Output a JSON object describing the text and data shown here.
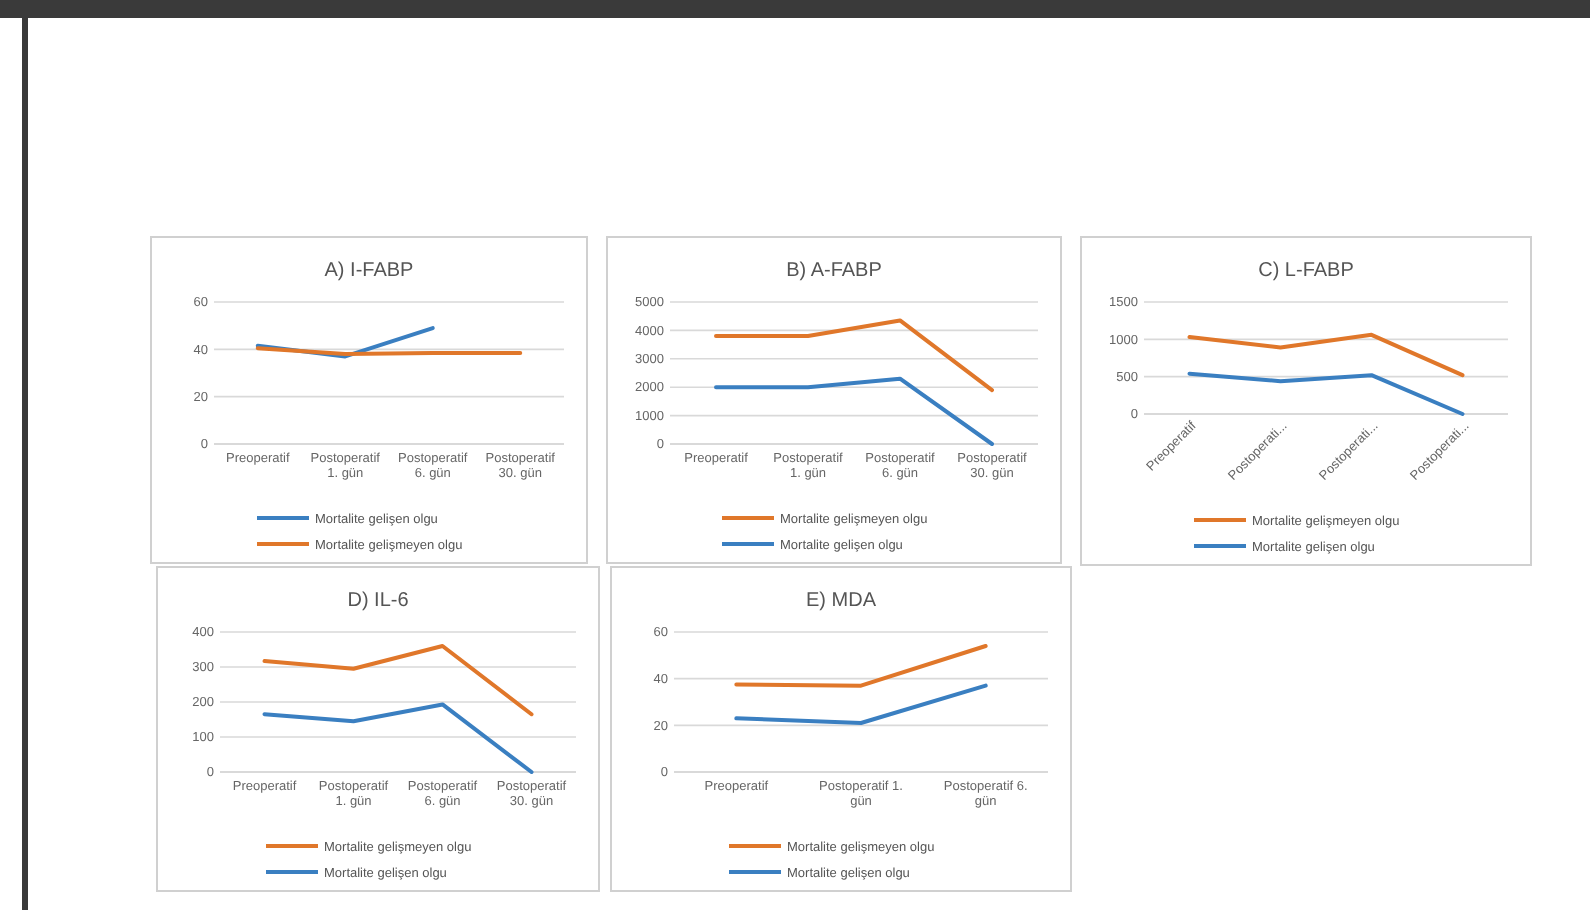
{
  "chart_data": [
    {
      "type": "line",
      "title": "A) I-FABP",
      "categories": [
        "Preoperatif",
        "Postoperatif 1. gün",
        "Postoperatif 6. gün",
        "Postoperatif 30. gün"
      ],
      "series": [
        {
          "name": "Mortalite gelişen olgu",
          "color": "#3a7fc1",
          "values": [
            41.5,
            37,
            49,
            null
          ]
        },
        {
          "name": "Mortalite gelişmeyen olgu",
          "color": "#e0772a",
          "values": [
            40.5,
            38,
            38.5,
            38.5
          ]
        }
      ],
      "ylim": [
        0,
        60
      ],
      "yticks": [
        0,
        20,
        40,
        60
      ],
      "grid": "y",
      "legend": "bottom",
      "line_style": "solid",
      "marker": "none"
    },
    {
      "type": "line",
      "title": "B) A-FABP",
      "categories": [
        "Preoperatif",
        "Postoperatif 1. gün",
        "Postoperatif 6. gün",
        "Postoperatif 30. gün"
      ],
      "series": [
        {
          "name": "Mortalite gelişmeyen olgu",
          "color": "#e0772a",
          "values": [
            3800,
            3800,
            4350,
            1900
          ]
        },
        {
          "name": "Mortalite gelişen olgu",
          "color": "#3a7fc1",
          "values": [
            2000,
            2000,
            2300,
            0
          ]
        }
      ],
      "ylim": [
        0,
        5000
      ],
      "yticks": [
        0,
        1000,
        2000,
        3000,
        4000,
        5000
      ],
      "grid": "y",
      "legend": "bottom",
      "line_style": "solid",
      "marker": "none"
    },
    {
      "type": "line",
      "title": "C) L-FABP",
      "categories": [
        "Preoperatif",
        "Postoperati...",
        "Postoperati...",
        "Postoperati..."
      ],
      "series": [
        {
          "name": "Mortalite gelişmeyen olgu",
          "color": "#e0772a",
          "values": [
            1030,
            890,
            1060,
            520
          ]
        },
        {
          "name": "Mortalite gelişen olgu",
          "color": "#3a7fc1",
          "values": [
            540,
            440,
            520,
            0
          ]
        }
      ],
      "ylim": [
        0,
        1500
      ],
      "yticks": [
        0,
        500,
        1000,
        1500
      ],
      "grid": "y",
      "legend": "bottom",
      "line_style": "solid",
      "marker": "none"
    },
    {
      "type": "line",
      "title": "D) IL-6",
      "categories": [
        "Preoperatif",
        "Postoperatif 1. gün",
        "Postoperatif 6. gün",
        "Postoperatif 30. gün"
      ],
      "series": [
        {
          "name": "Mortalite gelişmeyen olgu",
          "color": "#e0772a",
          "values": [
            317,
            295,
            360,
            165
          ]
        },
        {
          "name": "Mortalite gelişen olgu",
          "color": "#3a7fc1",
          "values": [
            165,
            145,
            193,
            0
          ]
        }
      ],
      "ylim": [
        0,
        400
      ],
      "yticks": [
        0,
        100,
        200,
        300,
        400
      ],
      "grid": "y",
      "legend": "bottom",
      "line_style": "solid",
      "marker": "none"
    },
    {
      "type": "line",
      "title": "E) MDA",
      "categories": [
        "Preoperatif",
        "Postoperatif 1. gün",
        "Postoperatif 6. gün"
      ],
      "series": [
        {
          "name": "Mortalite gelişmeyen olgu",
          "color": "#e0772a",
          "values": [
            37.5,
            37,
            54
          ]
        },
        {
          "name": "Mortalite gelişen olgu",
          "color": "#3a7fc1",
          "values": [
            23,
            21,
            37
          ]
        }
      ],
      "ylim": [
        0,
        60
      ],
      "yticks": [
        0,
        20,
        40,
        60
      ],
      "grid": "y",
      "legend": "bottom",
      "line_style": "solid",
      "marker": "none"
    }
  ]
}
